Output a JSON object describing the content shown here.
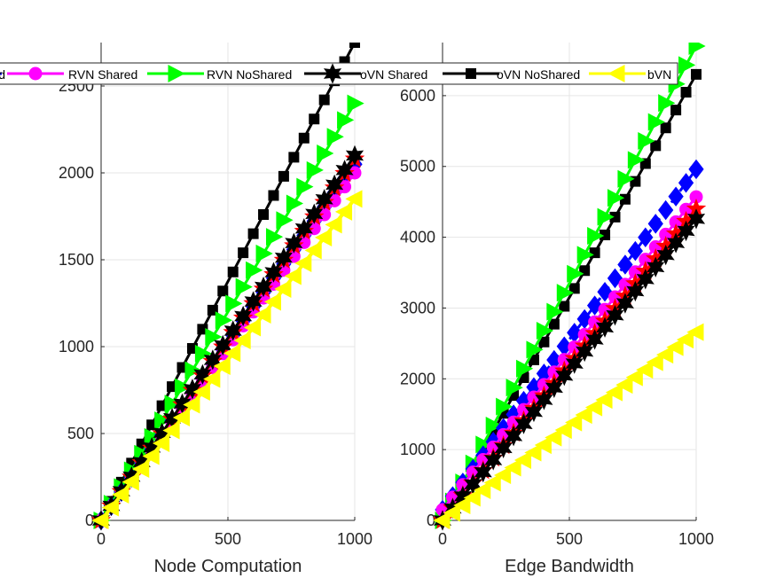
{
  "chart_data": [
    {
      "type": "line",
      "xlabel": "Node Computation",
      "ylabel": "",
      "xlim": [
        0,
        1000
      ],
      "ylim": [
        0,
        2500
      ],
      "xticks": [
        0,
        500,
        1000
      ],
      "yticks": [
        0,
        500,
        1000,
        1500,
        2000,
        2500
      ],
      "x": [
        0,
        1000
      ],
      "grid": true,
      "series": [
        {
          "name": "RVN Shared",
          "values": [
            0,
            2000
          ],
          "color": "#ff00ff",
          "marker": "circle"
        },
        {
          "name": "RVN NoShared",
          "values": [
            0,
            2400
          ],
          "color": "#00ff00",
          "marker": "triangle-right"
        },
        {
          "name": "oVN Shared",
          "values": [
            0,
            2100
          ],
          "color": "#000000",
          "marker": "hexagram"
        },
        {
          "name": "oVN NoShared",
          "values": [
            0,
            2750
          ],
          "color": "#000000",
          "marker": "square"
        },
        {
          "name": "bVN",
          "values": [
            0,
            1850
          ],
          "color": "#ffff00",
          "marker": "triangle-left"
        },
        {
          "name": "",
          "values": [
            0,
            2050
          ],
          "color": "#0000ff",
          "marker": "diamond"
        },
        {
          "name": "",
          "values": [
            0,
            2080
          ],
          "color": "#ff0000",
          "marker": "star"
        }
      ]
    },
    {
      "type": "line",
      "xlabel": "Edge Bandwidth",
      "ylabel": "",
      "xlim": [
        0,
        1000
      ],
      "ylim": [
        0,
        6300
      ],
      "xticks": [
        0,
        500,
        1000
      ],
      "yticks": [
        0,
        1000,
        2000,
        3000,
        4000,
        5000,
        6000
      ],
      "x": [
        0,
        1000
      ],
      "grid": true,
      "series": [
        {
          "name": "RVN Shared",
          "values": [
            150,
            4570
          ],
          "color": "#ff00ff",
          "marker": "circle"
        },
        {
          "name": "RVN NoShared",
          "values": [
            0,
            6700
          ],
          "color": "#00ff00",
          "marker": "triangle-right"
        },
        {
          "name": "oVN Shared",
          "values": [
            0,
            4260
          ],
          "color": "#000000",
          "marker": "hexagram"
        },
        {
          "name": "oVN NoShared",
          "values": [
            0,
            6300
          ],
          "color": "#000000",
          "marker": "square"
        },
        {
          "name": "bVN",
          "values": [
            0,
            2660
          ],
          "color": "#ffff00",
          "marker": "triangle-left"
        },
        {
          "name": "",
          "values": [
            150,
            4960
          ],
          "color": "#0000ff",
          "marker": "diamond"
        },
        {
          "name": "",
          "values": [
            0,
            4400
          ],
          "color": "#ff0000",
          "marker": "star"
        }
      ]
    }
  ],
  "legend": {
    "placement": "top",
    "entries": [
      {
        "label": "d",
        "color": "#0000ff",
        "marker": "diamond"
      },
      {
        "label": "RVN Shared",
        "color": "#ff00ff",
        "marker": "circle"
      },
      {
        "label": "RVN NoShared",
        "color": "#00ff00",
        "marker": "triangle-right"
      },
      {
        "label": "oVN Shared",
        "color": "#000000",
        "marker": "hexagram"
      },
      {
        "label": "oVN NoShared",
        "color": "#000000",
        "marker": "square"
      },
      {
        "label": "bVN",
        "color": "#ffff00",
        "marker": "triangle-left"
      }
    ]
  }
}
